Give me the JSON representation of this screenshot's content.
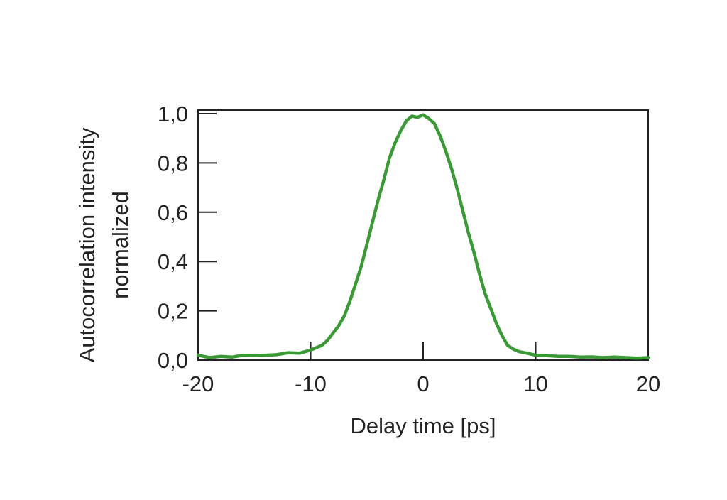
{
  "chart_data": {
    "type": "line",
    "title": "",
    "xlabel": "Delay time [ps]",
    "ylabel_lines": [
      "Autocorrelation intensity",
      "normalized"
    ],
    "xlim": [
      -20,
      20
    ],
    "ylim": [
      0,
      1.0
    ],
    "x_ticks": [
      -20,
      -10,
      0,
      10,
      20
    ],
    "x_tick_labels": [
      "-20",
      "-10",
      "0",
      "10",
      "20"
    ],
    "y_ticks": [
      0,
      0.2,
      0.4,
      0.6,
      0.8,
      1.0
    ],
    "y_tick_labels": [
      "0,0",
      "0,2",
      "0,4",
      "0,6",
      "0,8",
      "1,0"
    ],
    "grid": false,
    "legend": "none",
    "series": [
      {
        "color": "#3a9a35",
        "x": [
          -20,
          -19,
          -18,
          -17,
          -16,
          -15,
          -14,
          -13,
          -12,
          -11,
          -10,
          -9.5,
          -9,
          -8.5,
          -8,
          -7.5,
          -7,
          -6.5,
          -6,
          -5.5,
          -5,
          -4.5,
          -4,
          -3.5,
          -3,
          -2.5,
          -2,
          -1.5,
          -1,
          -0.5,
          0,
          0.5,
          1,
          1.5,
          2,
          2.5,
          3,
          3.5,
          4,
          4.5,
          5,
          5.5,
          6,
          6.5,
          7,
          7.5,
          8,
          8.5,
          9,
          9.5,
          10,
          11,
          12,
          13,
          14,
          15,
          16,
          17,
          18,
          19,
          20
        ],
        "y": [
          0.02,
          0.01,
          0.015,
          0.012,
          0.02,
          0.018,
          0.02,
          0.022,
          0.03,
          0.028,
          0.04,
          0.05,
          0.06,
          0.08,
          0.11,
          0.14,
          0.18,
          0.24,
          0.31,
          0.38,
          0.47,
          0.56,
          0.65,
          0.73,
          0.82,
          0.88,
          0.93,
          0.97,
          0.99,
          0.985,
          0.995,
          0.98,
          0.96,
          0.91,
          0.85,
          0.78,
          0.7,
          0.61,
          0.52,
          0.44,
          0.35,
          0.27,
          0.21,
          0.15,
          0.1,
          0.06,
          0.045,
          0.035,
          0.03,
          0.025,
          0.02,
          0.018,
          0.015,
          0.015,
          0.012,
          0.013,
          0.01,
          0.012,
          0.01,
          0.008,
          0.01
        ]
      }
    ]
  }
}
